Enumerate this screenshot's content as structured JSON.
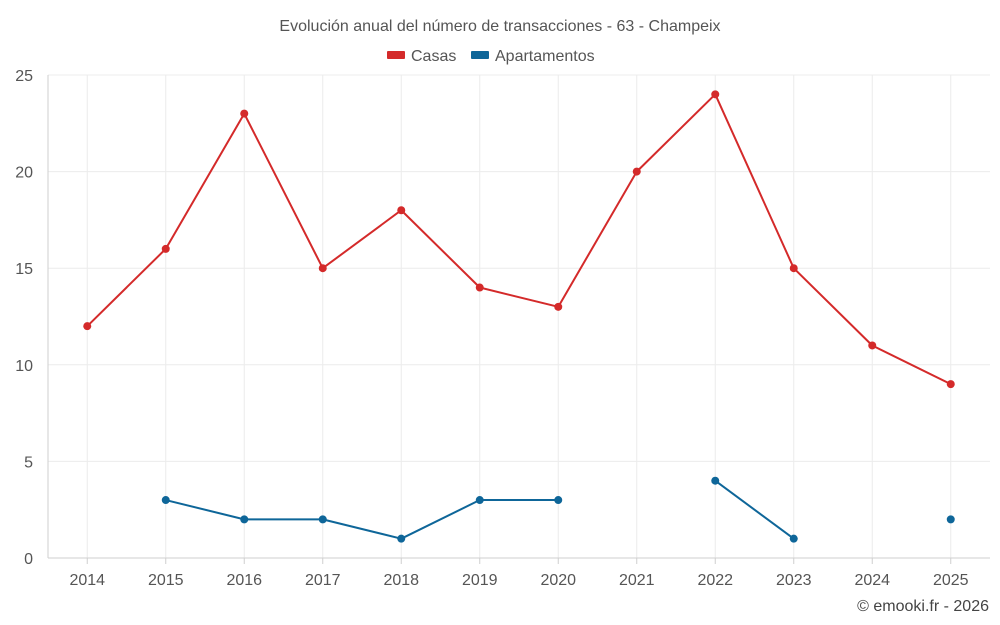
{
  "chart_data": {
    "type": "line",
    "title": "Evolución anual del número de transacciones - 63 - Champeix",
    "xlabel": "",
    "ylabel": "",
    "categories": [
      "2014",
      "2015",
      "2016",
      "2017",
      "2018",
      "2019",
      "2020",
      "2021",
      "2022",
      "2023",
      "2024",
      "2025"
    ],
    "ylim": [
      0,
      25
    ],
    "yticks": [
      0,
      5,
      10,
      15,
      20,
      25
    ],
    "grid": true,
    "legend_position": "top-center",
    "series": [
      {
        "name": "Casas",
        "color": "#d42a2a",
        "values": [
          12,
          16,
          23,
          15,
          18,
          14,
          13,
          20,
          24,
          15,
          11,
          9
        ]
      },
      {
        "name": "Apartamentos",
        "color": "#0e6699",
        "values": [
          null,
          3,
          2,
          2,
          1,
          3,
          3,
          null,
          4,
          1,
          null,
          2
        ]
      }
    ]
  },
  "credit": "© emooki.fr - 2026"
}
